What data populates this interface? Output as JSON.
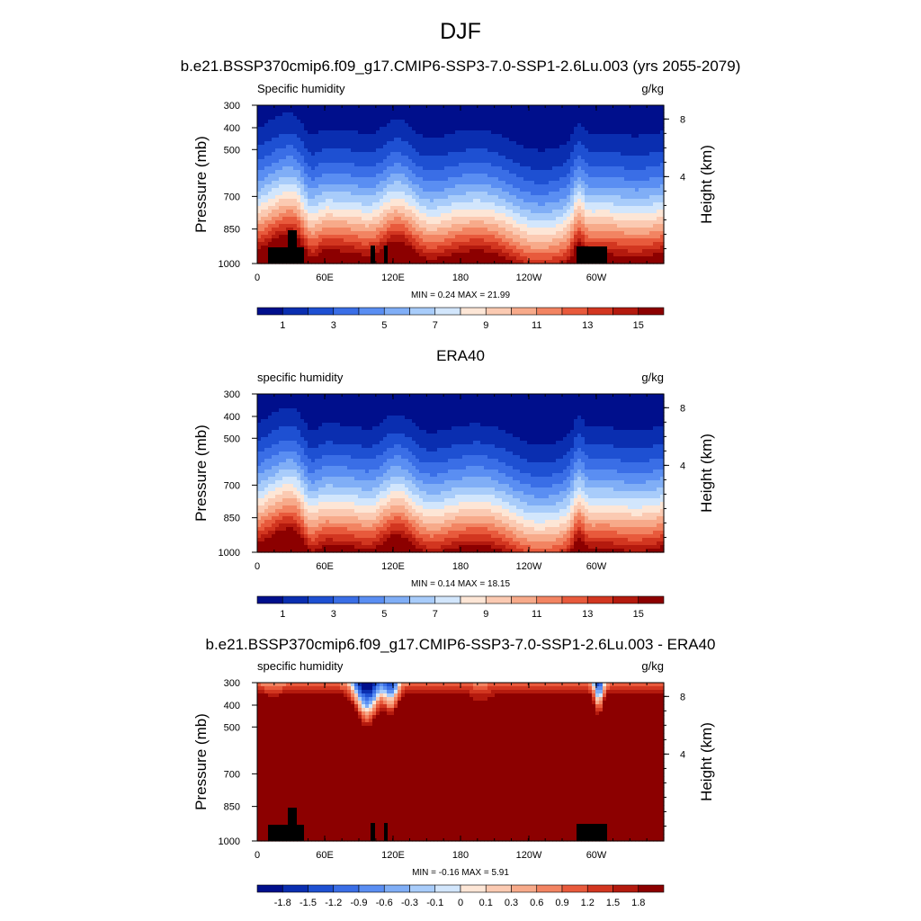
{
  "figure": {
    "title": "DJF"
  },
  "chart_data": [
    {
      "type": "heatmap",
      "title": "b.e21.BSSP370cmip6.f09_g17.CMIP6-SSP3-7.0-SSP1-2.6Lu.003 (yrs 2055-2079)",
      "variable_label": "Specific humidity",
      "units_label": "g/kg",
      "ylabel": "Pressure (mb)",
      "ylabel_right": "Height (km)",
      "x_ticks": [
        "0",
        "60E",
        "120E",
        "180",
        "120W",
        "60W"
      ],
      "y_ticks": [
        "300",
        "400",
        "500",
        "700",
        "850",
        "1000"
      ],
      "y_right_ticks": [
        "8",
        "4"
      ],
      "stats": "MIN =   0.24  MAX =  21.99",
      "colorbar_labels": [
        "1",
        "3",
        "5",
        "7",
        "9",
        "11",
        "13",
        "15"
      ],
      "has_topography": true,
      "min": 0.24,
      "max": 21.99,
      "palette": [
        "#000f8c",
        "#0a2eb0",
        "#1e50d2",
        "#3a6ee6",
        "#5a8ef2",
        "#80aef6",
        "#a8ccfa",
        "#d2e6fc",
        "#fde6d6",
        "#fbcab2",
        "#f7aa8a",
        "#f28462",
        "#e85a3c",
        "#d23620",
        "#b41a0e",
        "#8c0000"
      ]
    },
    {
      "type": "heatmap",
      "title": "ERA40",
      "variable_label": "specific humidity",
      "units_label": "g/kg",
      "ylabel": "Pressure (mb)",
      "ylabel_right": "Height (km)",
      "x_ticks": [
        "0",
        "60E",
        "120E",
        "180",
        "120W",
        "60W"
      ],
      "y_ticks": [
        "300",
        "400",
        "500",
        "700",
        "850",
        "1000"
      ],
      "y_right_ticks": [
        "8",
        "4"
      ],
      "stats": "MIN =   0.14  MAX =  18.15",
      "colorbar_labels": [
        "1",
        "3",
        "5",
        "7",
        "9",
        "11",
        "13",
        "15"
      ],
      "has_topography": false,
      "min": 0.14,
      "max": 18.15,
      "palette": [
        "#000f8c",
        "#0a2eb0",
        "#1e50d2",
        "#3a6ee6",
        "#5a8ef2",
        "#80aef6",
        "#a8ccfa",
        "#d2e6fc",
        "#fde6d6",
        "#fbcab2",
        "#f7aa8a",
        "#f28462",
        "#e85a3c",
        "#d23620",
        "#b41a0e",
        "#8c0000"
      ]
    },
    {
      "type": "heatmap",
      "title": "b.e21.BSSP370cmip6.f09_g17.CMIP6-SSP3-7.0-SSP1-2.6Lu.003 - ERA40",
      "variable_label": "specific humidity",
      "units_label": "g/kg",
      "ylabel": "Pressure (mb)",
      "ylabel_right": "Height (km)",
      "x_ticks": [
        "0",
        "60E",
        "120E",
        "180",
        "120W",
        "60W"
      ],
      "y_ticks": [
        "300",
        "400",
        "500",
        "700",
        "850",
        "1000"
      ],
      "y_right_ticks": [
        "8",
        "4"
      ],
      "stats": "MIN =  -0.16  MAX =    5.91",
      "colorbar_labels": [
        "-1.8",
        "-1.5",
        "-1.2",
        "-0.9",
        "-0.6",
        "-0.3",
        "-0.1",
        "0",
        "0.1",
        "0.3",
        "0.6",
        "0.9",
        "1.2",
        "1.5",
        "1.8"
      ],
      "has_topography": true,
      "min": -0.16,
      "max": 5.91,
      "palette": [
        "#000f8c",
        "#0a2eb0",
        "#1e50d2",
        "#3a6ee6",
        "#5a8ef2",
        "#80aef6",
        "#a8ccfa",
        "#d2e6fc",
        "#fde6d6",
        "#fbcab2",
        "#f7aa8a",
        "#f28462",
        "#e85a3c",
        "#d23620",
        "#b41a0e",
        "#8c0000"
      ]
    }
  ]
}
